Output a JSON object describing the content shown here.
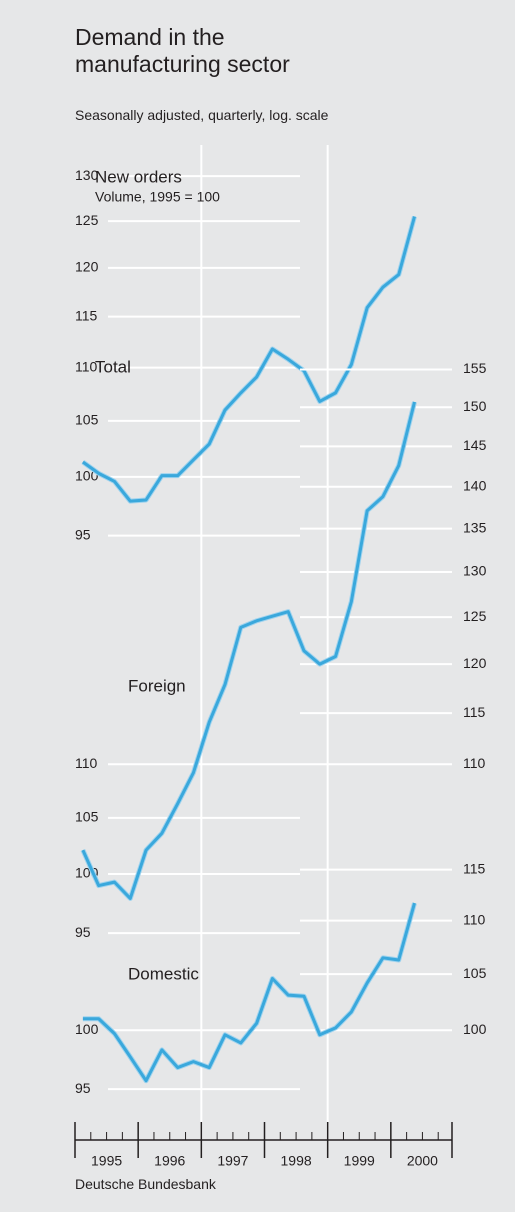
{
  "title": "Demand in the manufacturing sector",
  "subtitle": "Seasonally adjusted, quarterly, log. scale",
  "source": "Deutsche Bundesbank",
  "chart_data": [
    {
      "type": "line",
      "log_scale": true,
      "grid": true,
      "annotations": [
        "New orders",
        "Volume, 1995 = 100",
        "Total"
      ],
      "x": [
        1995.125,
        1995.375,
        1995.625,
        1995.875,
        1996.125,
        1996.375,
        1996.625,
        1996.875,
        1997.125,
        1997.375,
        1997.625,
        1997.875,
        1998.125,
        1998.375,
        1998.625,
        1998.875,
        1999.125,
        1999.375,
        1999.625,
        1999.875,
        2000.125,
        2000.375
      ],
      "series": [
        {
          "name": "Total",
          "color": "#3aa8dc",
          "values": [
            101.3,
            100.3,
            99.6,
            97.9,
            98.0,
            100.1,
            100.1,
            101.5,
            102.9,
            106.0,
            107.6,
            109.1,
            111.8,
            110.8,
            109.7,
            106.8,
            107.6,
            110.3,
            115.9,
            118.0,
            119.3,
            125.5
          ]
        }
      ],
      "ylim": [
        93,
        133
      ],
      "yticks": [
        95,
        100,
        105,
        110,
        115,
        120,
        125,
        130
      ]
    },
    {
      "type": "line",
      "log_scale": true,
      "grid": true,
      "annotations": [
        "Foreign"
      ],
      "x": [
        1995.125,
        1995.375,
        1995.625,
        1995.875,
        1996.125,
        1996.375,
        1996.625,
        1996.875,
        1997.125,
        1997.375,
        1997.625,
        1997.875,
        1998.125,
        1998.375,
        1998.625,
        1998.875,
        1999.125,
        1999.375,
        1999.625,
        1999.875,
        2000.125,
        2000.375
      ],
      "series": [
        {
          "name": "Foreign",
          "color": "#3aa8dc",
          "values": [
            102.1,
            99.0,
            99.3,
            97.9,
            102.1,
            103.6,
            106.3,
            109.2,
            114.1,
            117.9,
            123.9,
            124.6,
            125.1,
            125.6,
            121.4,
            120.0,
            120.8,
            126.7,
            137.1,
            138.8,
            142.6,
            150.7
          ]
        }
      ],
      "ylim": [
        92,
        160
      ],
      "yticks": [
        95,
        100,
        105,
        110
      ],
      "y2lim": [
        92,
        160
      ],
      "y2ticks": [
        110,
        115,
        120,
        125,
        130,
        135,
        140,
        145,
        150,
        155
      ]
    },
    {
      "type": "line",
      "log_scale": true,
      "grid": true,
      "annotations": [
        "Domestic"
      ],
      "x": [
        1995.125,
        1995.375,
        1995.625,
        1995.875,
        1996.125,
        1996.375,
        1996.625,
        1996.875,
        1997.125,
        1997.375,
        1997.625,
        1997.875,
        1998.125,
        1998.375,
        1998.625,
        1998.875,
        1999.125,
        1999.375,
        1999.625,
        1999.875,
        2000.125,
        2000.375
      ],
      "series": [
        {
          "name": "Domestic",
          "color": "#3aa8dc",
          "values": [
            101.0,
            101.0,
            99.7,
            97.7,
            95.7,
            98.3,
            96.8,
            97.3,
            96.8,
            99.6,
            98.9,
            100.6,
            104.6,
            103.1,
            103.0,
            99.6,
            100.2,
            101.6,
            104.2,
            106.5,
            106.3,
            111.7
          ]
        }
      ],
      "ylim": [
        92,
        118
      ],
      "yticks": [
        95,
        100
      ],
      "y2lim": [
        92,
        118
      ],
      "y2ticks": [
        100,
        105,
        110,
        115
      ],
      "xlim": [
        1995,
        2001
      ],
      "xticks": [
        1995,
        1996,
        1997,
        1998,
        1999,
        2000
      ]
    }
  ]
}
